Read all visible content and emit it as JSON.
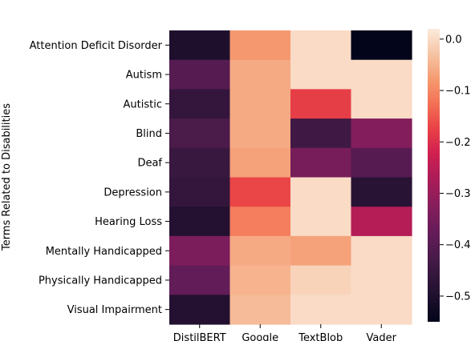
{
  "chart_data": {
    "type": "heatmap",
    "title": "",
    "xlabel": "",
    "ylabel": "Terms Related to Disabilities",
    "categories_x": [
      "DistilBERT",
      "Google",
      "TextBlob",
      "Vader"
    ],
    "categories_y": [
      "Attention Deficit Disorder",
      "Autism",
      "Autistic",
      "Blind",
      "Deaf",
      "Depression",
      "Hearing Loss",
      "Mentally Handicapped",
      "Physically Handicapped",
      "Visual Impairment"
    ],
    "values": [
      [
        -0.5,
        -0.08,
        0.0,
        -0.55
      ],
      [
        -0.4,
        -0.06,
        0.0,
        0.0
      ],
      [
        -0.46,
        -0.06,
        -0.18,
        0.0
      ],
      [
        -0.42,
        -0.06,
        -0.44,
        -0.33
      ],
      [
        -0.45,
        -0.07,
        -0.35,
        -0.4
      ],
      [
        -0.46,
        -0.17,
        0.0,
        -0.48
      ],
      [
        -0.49,
        -0.11,
        0.0,
        -0.26
      ],
      [
        -0.34,
        -0.06,
        -0.07,
        0.0
      ],
      [
        -0.38,
        -0.05,
        -0.01,
        0.0
      ],
      [
        -0.49,
        -0.04,
        0.0,
        0.0
      ]
    ],
    "colorbar": {
      "range": [
        -0.55,
        0.02
      ],
      "ticks": [
        "0.0",
        "−0.1",
        "−0.2",
        "−0.3",
        "−0.4",
        "−0.5"
      ],
      "tick_values": [
        0.0,
        -0.1,
        -0.2,
        -0.3,
        -0.4,
        -0.5
      ],
      "colormap": "rocket"
    },
    "grid": false
  }
}
